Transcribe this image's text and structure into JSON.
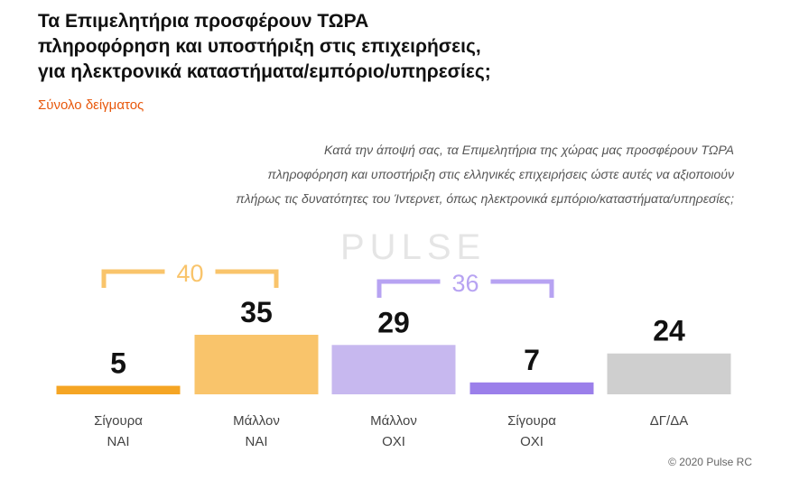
{
  "title_lines": [
    "Τα Επιμελητήρια προσφέρουν ΤΩΡΑ",
    "πληροφόρηση και υποστήριξη στις επιχειρήσεις,",
    "για ηλεκτρονικά καταστήματα/εμπόριο/υπηρεσίες;"
  ],
  "subtitle": "Σύνολο δείγματος",
  "question_lines": [
    "Κατά την άποψή σας, τα Επιμελητήρια της χώρας μας προσφέρουν ΤΩΡΑ",
    "πληροφόρηση και υποστήριξη στις ελληνικές επιχειρήσεις ώστε αυτές να αξιοποιούν",
    "πλήρως τις δυνατότητες του Ίντερνετ, όπως ηλεκτρονικά εμπόριο/καταστήματα/υπηρεσίες;"
  ],
  "watermark": "PULSE",
  "copyright": "© 2020 Pulse RC",
  "colors": {
    "orange": "#f5a524",
    "orange_light": "#f9c46b",
    "purple": "#9b7fea",
    "purple_light": "#c7b8ef",
    "gray": "#cfcfcf",
    "value_text": "#111111"
  },
  "chart_data": {
    "type": "bar",
    "categories": [
      [
        "Σίγουρα",
        "ΝΑΙ"
      ],
      [
        "Μάλλον",
        "ΝΑΙ"
      ],
      [
        "Μάλλον",
        "ΟΧΙ"
      ],
      [
        "Σίγουρα",
        "ΟΧΙ"
      ],
      [
        "ΔΓ/ΔΑ"
      ]
    ],
    "values": [
      5,
      35,
      29,
      7,
      24
    ],
    "bar_colors": [
      "#f5a524",
      "#f9c46b",
      "#c7b8ef",
      "#9b7fea",
      "#cfcfcf"
    ],
    "groups": [
      {
        "label": "40",
        "from": 0,
        "to": 1,
        "color": "#f9c46b"
      },
      {
        "label": "36",
        "from": 2,
        "to": 3,
        "color": "#b7a3f2"
      }
    ],
    "title": "",
    "xlabel": "",
    "ylabel": "",
    "ylim": [
      0,
      40
    ],
    "grid": false,
    "legend": "none"
  }
}
